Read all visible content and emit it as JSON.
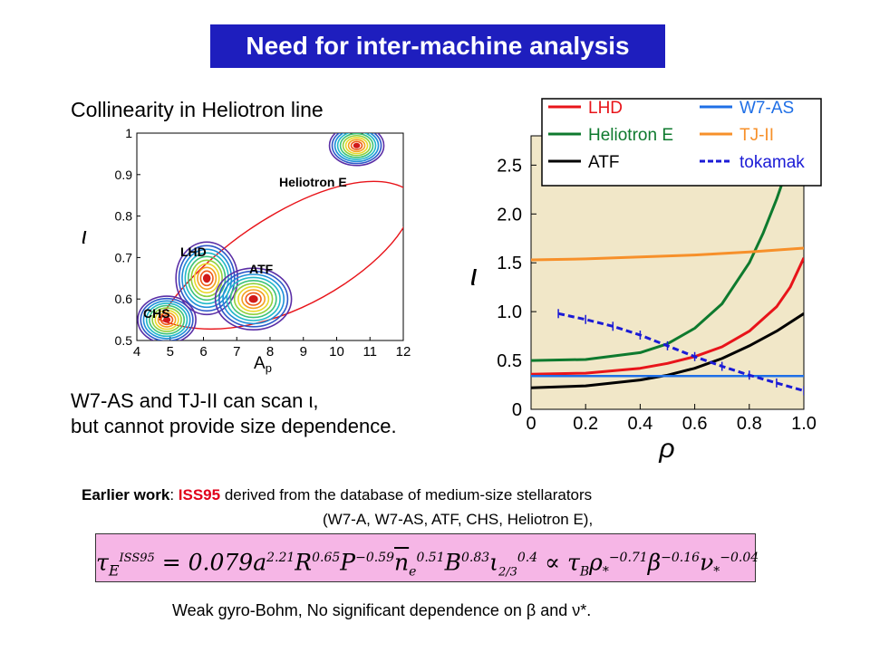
{
  "title": "Need for inter-machine analysis",
  "subtitle": "Collinearity in Heliotron line",
  "scan_line1": "W7-AS and TJ-II can scan ι,",
  "scan_line2": "but cannot provide size dependence.",
  "earlier": {
    "label": "Earlier work",
    "sep": ": ",
    "iss": "ISS95",
    "rest": " derived from the database of medium-size stellarators",
    "line2": "(W7-A, W7-AS, ATF, CHS, Heliotron E),"
  },
  "formula_text": "τ_E^ISS95 = 0.079 a^2.21 R^0.65 P^-0.59 n_e^0.51 B^0.83 ι_2/3^0.4 ∝ τ_B ρ*^-0.71 β^-0.16 ν*^-0.04",
  "weak_text": "Weak gyro-Bohm, No significant dependence on β and ν*.",
  "colors": {
    "title_bg": "#1e1ebe",
    "iss": "#e0001a",
    "formula_bg": "#f6b6e6",
    "plot_bg": "#f1e7c8",
    "LHD": "#e8141a",
    "Heliotron E": "#0e7a2e",
    "ATF": "#000000",
    "W7-AS": "#1f6fe6",
    "TJ-II": "#f7902a",
    "tokamak": "#1b1bd6"
  },
  "chart_data": [
    {
      "type": "contour",
      "xlabel": "A_p",
      "ylabel": "ι",
      "xlim": [
        4,
        12
      ],
      "ylim": [
        0.5,
        1
      ],
      "x_ticks": [
        4,
        5,
        6,
        7,
        8,
        9,
        10,
        11,
        12
      ],
      "y_ticks": [
        0.5,
        0.6,
        0.7,
        0.8,
        0.9,
        1
      ],
      "clusters": [
        {
          "name": "CHS",
          "x": 4.9,
          "y": 0.55
        },
        {
          "name": "LHD",
          "x": 6.1,
          "y": 0.65
        },
        {
          "name": "ATF",
          "x": 7.5,
          "y": 0.6
        },
        {
          "name": "Heliotron E",
          "x": 10.6,
          "y": 0.97
        }
      ]
    },
    {
      "type": "line",
      "xlabel": "ρ",
      "ylabel": "ι",
      "xlim": [
        0,
        1
      ],
      "ylim": [
        0,
        2.8
      ],
      "x_ticks": [
        0,
        0.2,
        0.4,
        0.6,
        0.8,
        1.0
      ],
      "x_tick_labels": [
        "0",
        "0.2",
        "0.4",
        "0.6",
        "0.8",
        "1.0"
      ],
      "y_ticks": [
        0,
        0.5,
        1.0,
        1.5,
        2.0,
        2.5
      ],
      "y_tick_labels": [
        "0",
        "0.5",
        "1.0",
        "1.5",
        "2.0",
        "2.5"
      ],
      "legend": "top",
      "series": [
        {
          "name": "LHD",
          "x": [
            0,
            0.2,
            0.4,
            0.5,
            0.6,
            0.7,
            0.8,
            0.9,
            0.95,
            1.0
          ],
          "y": [
            0.36,
            0.37,
            0.42,
            0.47,
            0.54,
            0.64,
            0.8,
            1.05,
            1.25,
            1.55
          ]
        },
        {
          "name": "Heliotron E",
          "x": [
            0,
            0.2,
            0.4,
            0.5,
            0.6,
            0.7,
            0.8,
            0.85,
            0.9,
            0.95,
            0.98
          ],
          "y": [
            0.5,
            0.51,
            0.58,
            0.67,
            0.83,
            1.08,
            1.5,
            1.8,
            2.15,
            2.55,
            2.8
          ]
        },
        {
          "name": "ATF",
          "x": [
            0,
            0.2,
            0.4,
            0.5,
            0.6,
            0.7,
            0.8,
            0.9,
            1.0
          ],
          "y": [
            0.22,
            0.24,
            0.3,
            0.35,
            0.42,
            0.52,
            0.65,
            0.8,
            0.98
          ]
        },
        {
          "name": "W7-AS",
          "x": [
            0,
            1.0
          ],
          "y": [
            0.34,
            0.34
          ]
        },
        {
          "name": "TJ-II",
          "x": [
            0,
            0.2,
            0.4,
            0.6,
            0.8,
            1.0
          ],
          "y": [
            1.53,
            1.54,
            1.56,
            1.58,
            1.61,
            1.65
          ]
        },
        {
          "name": "tokamak",
          "x": [
            0.1,
            0.2,
            0.3,
            0.4,
            0.5,
            0.6,
            0.7,
            0.8,
            0.9,
            1.0
          ],
          "y": [
            0.98,
            0.92,
            0.85,
            0.76,
            0.65,
            0.54,
            0.44,
            0.35,
            0.27,
            0.19
          ]
        }
      ]
    }
  ]
}
